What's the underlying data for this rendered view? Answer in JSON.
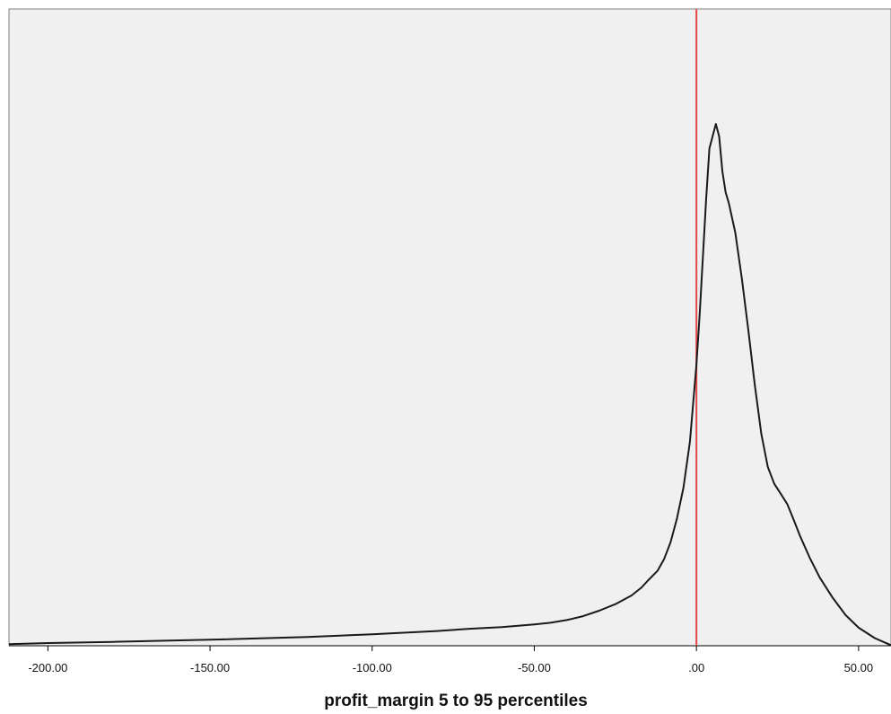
{
  "chart_data": {
    "type": "line",
    "title": "",
    "xlabel": "profit_margin 5 to 95 percentiles",
    "ylabel": "",
    "xlim": [
      -212,
      60
    ],
    "ylim": [
      0,
      1
    ],
    "grid": false,
    "legend": "none",
    "x_ticks": [
      -200,
      -150,
      -100,
      -50,
      0,
      50
    ],
    "x_tick_labels": [
      "-200.00",
      "-150.00",
      "-100.00",
      "-50.00",
      ".00",
      "50.00"
    ],
    "reference_line": {
      "x": 0,
      "color": "#e8474a"
    },
    "series": [
      {
        "color": "#1a1a1a",
        "x": [
          -212,
          -200,
          -180,
          -150,
          -120,
          -100,
          -80,
          -70,
          -60,
          -50,
          -45,
          -40,
          -35,
          -30,
          -25,
          -20,
          -17,
          -15,
          -12,
          -10,
          -8,
          -6,
          -4,
          -2,
          0,
          1,
          2,
          3,
          4,
          6,
          7,
          8,
          9,
          10,
          12,
          14,
          16,
          18,
          20,
          22,
          24,
          26,
          28,
          30,
          32,
          35,
          38,
          42,
          46,
          50,
          55,
          60
        ],
        "y": [
          0.003,
          0.005,
          0.007,
          0.011,
          0.016,
          0.021,
          0.027,
          0.031,
          0.034,
          0.039,
          0.042,
          0.047,
          0.054,
          0.064,
          0.076,
          0.092,
          0.106,
          0.119,
          0.137,
          0.158,
          0.189,
          0.233,
          0.289,
          0.373,
          0.515,
          0.607,
          0.712,
          0.817,
          0.909,
          0.954,
          0.931,
          0.867,
          0.829,
          0.809,
          0.755,
          0.671,
          0.577,
          0.477,
          0.388,
          0.327,
          0.296,
          0.278,
          0.259,
          0.23,
          0.2,
          0.16,
          0.125,
          0.088,
          0.056,
          0.033,
          0.014,
          0.001
        ]
      }
    ]
  }
}
